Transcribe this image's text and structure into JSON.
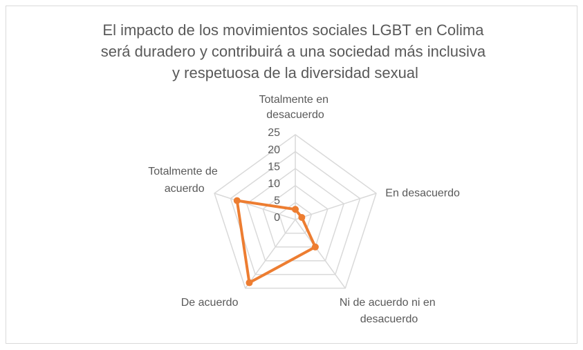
{
  "chart_data": {
    "type": "radar",
    "title": "El impacto de los movimientos sociales LGBT en Colima será duradero y contribuirá a una sociedad más inclusiva y respetuosa de la diversidad sexual",
    "categories": [
      "Totalmente en desacuerdo",
      "En desacuerdo",
      "Ni de acuerdo ni en desacuerdo",
      "De acuerdo",
      "Totalmente de acuerdo"
    ],
    "values": [
      3,
      2,
      10,
      23,
      18
    ],
    "color": "#ed7d31",
    "ylim": [
      0,
      25
    ],
    "yticks": [
      0,
      5,
      10,
      15,
      20,
      25
    ],
    "grid": true
  }
}
